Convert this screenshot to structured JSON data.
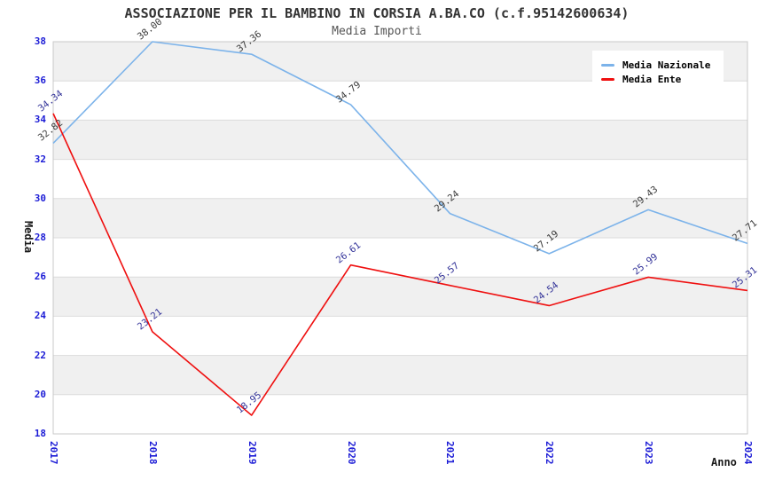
{
  "header": {
    "title": "ASSOCIAZIONE PER IL BAMBINO IN CORSIA A.BA.CO (c.f.95142600634)",
    "subtitle": "Media Importi"
  },
  "axes": {
    "ylabel": "Media",
    "xlabel": "Anno",
    "tick_color": "#1C1CD6"
  },
  "legend": {
    "items": [
      {
        "label": "Media Nazionale",
        "color": "#7CB3EA"
      },
      {
        "label": "Media Ente",
        "color": "#EF1010"
      }
    ]
  },
  "chart_data": {
    "type": "line",
    "title": "ASSOCIAZIONE PER IL BAMBINO IN CORSIA A.BA.CO (c.f.95142600634)",
    "subtitle": "Media Importi",
    "xlabel": "Anno",
    "ylabel": "Media",
    "x": [
      2017,
      2018,
      2019,
      2020,
      2021,
      2022,
      2023,
      2024
    ],
    "series": [
      {
        "name": "Media Nazionale",
        "color": "#7CB3EA",
        "label_color": "#3A3A3A",
        "values": [
          32.82,
          38.0,
          37.36,
          34.79,
          29.24,
          27.19,
          29.43,
          27.71
        ]
      },
      {
        "name": "Media Ente",
        "color": "#EF1010",
        "label_color": "#333399",
        "values": [
          34.34,
          23.21,
          18.95,
          26.61,
          25.57,
          24.54,
          25.99,
          25.31
        ]
      }
    ],
    "ylim": [
      18,
      38
    ],
    "ytick_step": 2,
    "grid": "horizontal-bands",
    "band_colors": [
      "#F0F0F0",
      "#FFFFFF"
    ],
    "gridline_color": "#DBDBDB",
    "border_color": "#C9C9C9",
    "legend_position": "top-right",
    "data_labels": true,
    "data_label_rotation_deg": -38
  }
}
